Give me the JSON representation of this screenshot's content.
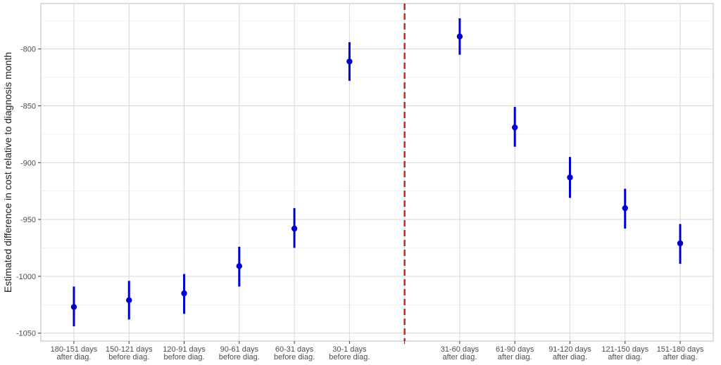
{
  "chart_data": {
    "type": "pointrange",
    "y_label": "Estimated difference in cost relative to diagnosis month",
    "categories": [
      [
        "180-151 days",
        "after diag."
      ],
      [
        "150-121 days",
        "before diag."
      ],
      [
        "120-91 days",
        "before diag."
      ],
      [
        "90-61 days",
        "before diag."
      ],
      [
        "60-31 days",
        "before diag."
      ],
      [
        "30-1 days",
        "before diag."
      ],
      null,
      [
        "31-60 days",
        "after diag."
      ],
      [
        "61-90 days",
        "after diag."
      ],
      [
        "91-120 days",
        "after diag."
      ],
      [
        "121-150 days",
        "after diag."
      ],
      [
        "151-180 days",
        "after diag."
      ]
    ],
    "values": [
      -1027,
      -1021,
      -1015,
      -991,
      -958,
      -811,
      null,
      -789,
      -869,
      -913,
      -940,
      -971
    ],
    "lower": [
      -1044,
      -1038,
      -1033,
      -1009,
      -975,
      -828,
      null,
      -805,
      -886,
      -931,
      -958,
      -989
    ],
    "upper": [
      -1009,
      -1004,
      -998,
      -974,
      -940,
      -794,
      null,
      -773,
      -851,
      -895,
      -923,
      -954
    ],
    "color": "#0000cd",
    "reference_line_color": "#d62020",
    "ylim": [
      -1057,
      -760
    ],
    "yticks": [
      -1050,
      -1000,
      -950,
      -900,
      -850,
      -800
    ],
    "y_minor_ticks": [
      -1025,
      -975,
      -925,
      -875,
      -825,
      -775
    ],
    "grid": true
  }
}
